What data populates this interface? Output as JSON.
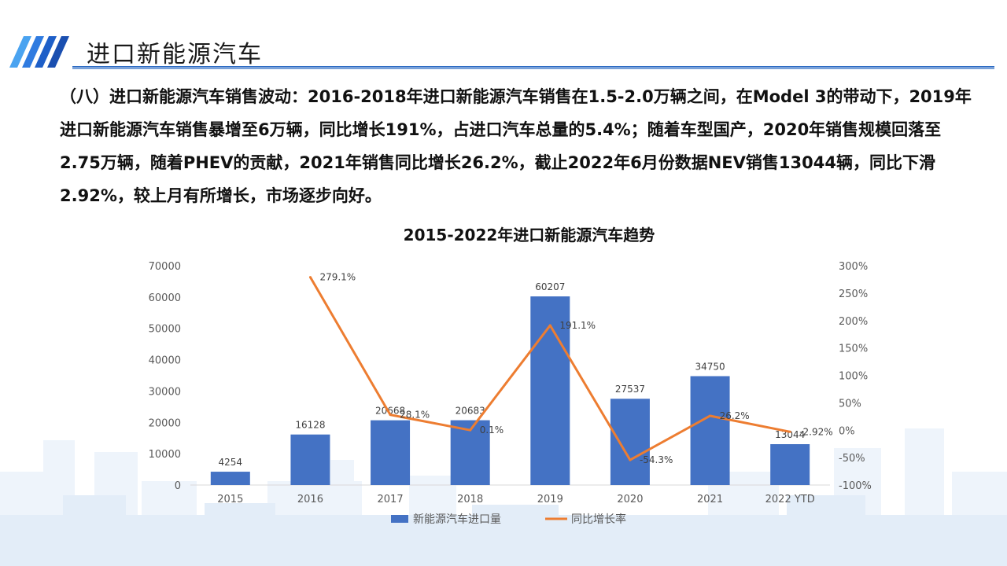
{
  "page": {
    "title": "进口新能源汽车",
    "paragraph": "（八）进口新能源汽车销售波动：2016-2018年进口新能源汽车销售在1.5-2.0万辆之间，在Model 3的带动下，2019年进口新能源汽车销售暴增至6万辆，同比增长191%，占进口汽车总量的5.4%；随着车型国产，2020年销售规模回落至2.75万辆，随着PHEV的贡献，2021年销售同比增长26.2%，截止2022年6月份数据NEV销售13044辆，同比下滑2.92%，较上月有所增长，市场逐步向好。",
    "accent_color": "#2f6dc4",
    "logo_icon": "blue-slanted-stripes-icon"
  },
  "chart_data": {
    "type": "bar",
    "title": "2015-2022年进口新能源汽车趋势",
    "categories": [
      "2015",
      "2016",
      "2017",
      "2018",
      "2019",
      "2020",
      "2021",
      "2022 YTD"
    ],
    "series": [
      {
        "name": "新能源汽车进口量",
        "type": "bar",
        "axis": "left",
        "color": "#4472c4",
        "values": [
          4254,
          16128,
          20668,
          20683,
          60207,
          27537,
          34750,
          13044
        ],
        "labels": [
          "4254",
          "16128",
          "20668",
          "20683",
          "60207",
          "27537",
          "34750",
          "13044"
        ]
      },
      {
        "name": "同比增长率",
        "type": "line",
        "axis": "right",
        "color": "#ed7d31",
        "values": [
          null,
          279.1,
          28.1,
          0.1,
          191.1,
          -54.3,
          26.2,
          -2.92
        ],
        "labels": [
          null,
          "279.1%",
          "28.1%",
          "0.1%",
          "191.1%",
          "-54.3%",
          "26.2%",
          "-2.92%"
        ]
      }
    ],
    "y_left": {
      "min": 0,
      "max": 70000,
      "ticks": [
        "0",
        "10000",
        "20000",
        "30000",
        "40000",
        "50000",
        "60000",
        "70000"
      ]
    },
    "y_right": {
      "min": -100,
      "max": 300,
      "ticks": [
        "-100%",
        "-50%",
        "0%",
        "50%",
        "100%",
        "150%",
        "200%",
        "250%",
        "300%"
      ]
    },
    "grid": false,
    "legend": "bottom"
  }
}
